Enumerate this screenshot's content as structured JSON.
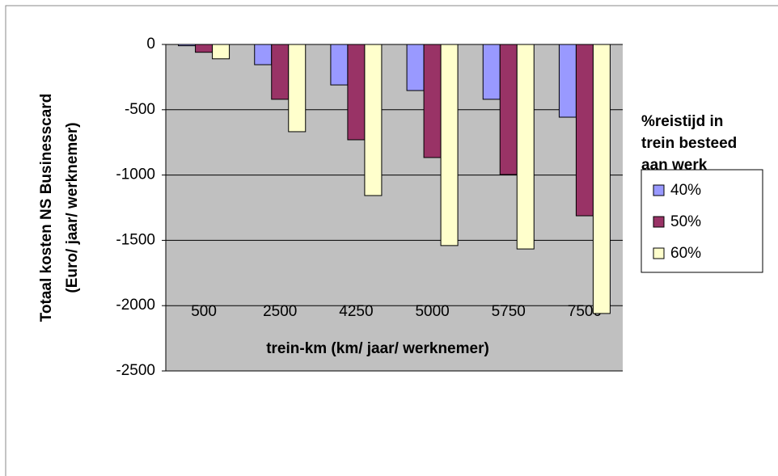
{
  "chart_data": {
    "type": "bar",
    "ylabel": [
      "Totaal kosten NS Businesscard",
      "(Euro/ jaar/ werknemer)"
    ],
    "xlabel": "trein-km (km/ jaar/ werknemer)",
    "legend_title": [
      "%reistijd in",
      "trein besteed",
      "aan werk"
    ],
    "categories": [
      "500",
      "2500",
      "4250",
      "5000",
      "5750",
      "7500"
    ],
    "series": [
      {
        "name": "40%",
        "color": "#9999ff",
        "values": [
          -10,
          -155,
          -310,
          -353,
          -420,
          -557
        ]
      },
      {
        "name": "50%",
        "color": "#993366",
        "values": [
          -60,
          -420,
          -730,
          -866,
          -996,
          -1312
        ]
      },
      {
        "name": "60%",
        "color": "#ffffcc",
        "values": [
          -110,
          -668,
          -1157,
          -1540,
          -1566,
          -2060
        ]
      }
    ],
    "ylim": [
      -2500,
      0
    ],
    "yticks": [
      0,
      -500,
      -1000,
      -1500,
      -2000,
      -2500
    ],
    "grid": true
  }
}
